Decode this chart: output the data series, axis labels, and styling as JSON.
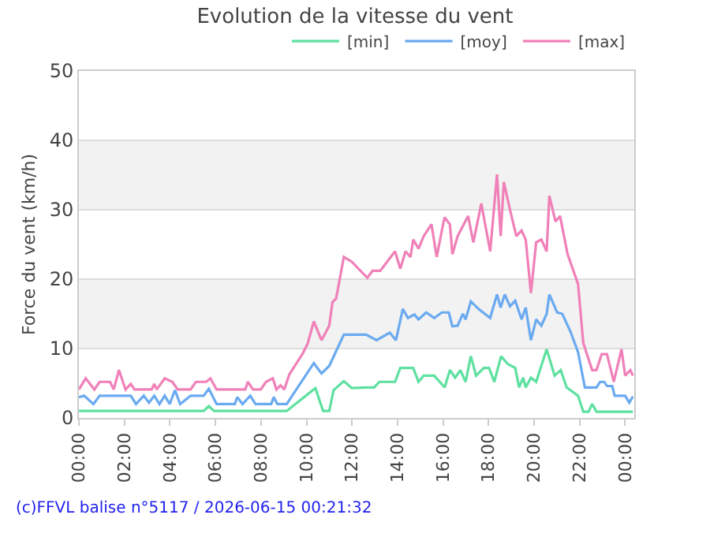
{
  "chart_data": {
    "type": "line",
    "title": "Evolution de la vitesse du vent",
    "ylabel": "Force du vent (km/h)",
    "annotations": [
      "(c)FFVL balise n°5117 / 2026-06-15 00:21:32"
    ],
    "xlim": [
      0,
      24.4
    ],
    "ylim": [
      0,
      50
    ],
    "xticks": [
      {
        "value": 0,
        "label": "00:00"
      },
      {
        "value": 2,
        "label": "02:00"
      },
      {
        "value": 4,
        "label": "04:00"
      },
      {
        "value": 6,
        "label": "06:00"
      },
      {
        "value": 8,
        "label": "08:00"
      },
      {
        "value": 10,
        "label": "10:00"
      },
      {
        "value": 12,
        "label": "12:00"
      },
      {
        "value": 14,
        "label": "14:00"
      },
      {
        "value": 16,
        "label": "16:00"
      },
      {
        "value": 18,
        "label": "18:00"
      },
      {
        "value": 20,
        "label": "20:00"
      },
      {
        "value": 22,
        "label": "22:00"
      },
      {
        "value": 24,
        "label": "00:00"
      }
    ],
    "yticks": [
      0,
      10,
      20,
      30,
      40,
      50
    ],
    "grid": "y",
    "legend": "top right",
    "marker": "none",
    "line_style": "solid",
    "bands": [
      {
        "axis": "y",
        "from": 10,
        "to": 20,
        "color": "#f2f2f2"
      },
      {
        "axis": "y",
        "from": 30,
        "to": 40,
        "color": "#f2f2f2"
      }
    ],
    "series": [
      {
        "name": "[min]",
        "color": "#5ee0a0",
        "x": [
          0,
          5.48,
          5.71,
          5.94,
          9.13,
          10.39,
          10.73,
          11.0,
          11.19,
          11.64,
          11.99,
          12.62,
          12.97,
          13.2,
          13.89,
          14.12,
          14.69,
          14.92,
          15.15,
          15.61,
          16.07,
          16.3,
          16.53,
          16.76,
          16.99,
          17.22,
          17.45,
          17.79,
          18.02,
          18.25,
          18.55,
          18.83,
          19.17,
          19.34,
          19.52,
          19.63,
          19.86,
          20.09,
          20.55,
          20.9,
          21.17,
          21.43,
          21.93,
          22.16,
          22.39,
          22.55,
          22.74,
          24.34
        ],
        "values": [
          1.0,
          1.0,
          1.7,
          1.0,
          1.0,
          4.3,
          1.0,
          1.0,
          4.0,
          5.3,
          4.3,
          4.4,
          4.4,
          5.2,
          5.2,
          7.2,
          7.2,
          5.2,
          6.1,
          6.1,
          4.4,
          6.9,
          5.8,
          6.9,
          5.2,
          8.9,
          6.1,
          7.2,
          7.2,
          5.2,
          8.9,
          7.8,
          7.2,
          4.4,
          5.8,
          4.4,
          5.8,
          5.2,
          9.9,
          6.1,
          6.9,
          4.4,
          3.2,
          0.9,
          0.9,
          2.0,
          0.9,
          0.9
        ]
      },
      {
        "name": "[moy]",
        "color": "#6aaaf0",
        "x": [
          0,
          0.23,
          0.64,
          0.91,
          2.28,
          2.51,
          2.85,
          3.08,
          3.31,
          3.54,
          3.77,
          3.99,
          4.22,
          4.45,
          4.91,
          5.48,
          5.71,
          6.05,
          6.85,
          6.96,
          7.19,
          7.53,
          7.76,
          8.45,
          8.56,
          8.72,
          9.13,
          10.32,
          10.66,
          11.0,
          11.64,
          12.21,
          12.62,
          13.08,
          13.66,
          13.93,
          14.23,
          14.46,
          14.74,
          14.92,
          15.26,
          15.61,
          15.95,
          16.25,
          16.41,
          16.64,
          16.87,
          16.99,
          17.22,
          17.56,
          18.07,
          18.37,
          18.53,
          18.71,
          18.94,
          19.17,
          19.45,
          19.63,
          19.86,
          20.09,
          20.32,
          20.55,
          20.67,
          21.01,
          21.24,
          21.59,
          21.93,
          22.23,
          22.74,
          22.9,
          23.08,
          23.2,
          23.43,
          23.54,
          24.0,
          24.18,
          24.34
        ],
        "values": [
          3.0,
          3.2,
          2.0,
          3.2,
          3.2,
          2.0,
          3.2,
          2.2,
          3.2,
          2.0,
          3.2,
          2.0,
          4.0,
          2.0,
          3.2,
          3.2,
          4.2,
          2.0,
          2.0,
          3.0,
          2.0,
          3.2,
          2.0,
          2.0,
          3.0,
          2.0,
          2.0,
          7.9,
          6.4,
          7.5,
          12.0,
          12.0,
          12.0,
          11.2,
          12.3,
          11.2,
          15.7,
          14.4,
          14.9,
          14.2,
          15.2,
          14.4,
          15.2,
          15.2,
          13.2,
          13.3,
          15.0,
          14.2,
          16.8,
          15.7,
          14.4,
          17.8,
          15.9,
          17.8,
          16.1,
          16.9,
          14.2,
          15.9,
          11.2,
          14.2,
          13.3,
          15.0,
          17.8,
          15.2,
          15.0,
          12.5,
          9.5,
          4.4,
          4.4,
          5.2,
          5.2,
          4.6,
          4.6,
          3.2,
          3.2,
          2.2,
          3.1
        ]
      },
      {
        "name": "[max]",
        "color": "#f080b8",
        "x": [
          0,
          0.3,
          0.68,
          0.91,
          1.37,
          1.53,
          1.76,
          2.05,
          2.28,
          2.44,
          3.2,
          3.31,
          3.42,
          3.77,
          4.11,
          4.34,
          4.91,
          5.14,
          5.59,
          5.78,
          6.05,
          7.31,
          7.42,
          7.65,
          7.99,
          8.22,
          8.52,
          8.68,
          8.86,
          9.02,
          9.25,
          9.82,
          10.05,
          10.32,
          10.66,
          11.0,
          11.14,
          11.3,
          11.42,
          11.64,
          11.99,
          12.67,
          12.9,
          13.24,
          13.89,
          14.12,
          14.35,
          14.57,
          14.69,
          14.92,
          15.15,
          15.49,
          15.72,
          16.0,
          16.07,
          16.3,
          16.41,
          16.64,
          17.1,
          17.33,
          17.68,
          18.07,
          18.37,
          18.53,
          18.67,
          18.94,
          19.22,
          19.45,
          19.63,
          19.86,
          20.09,
          20.32,
          20.55,
          20.67,
          20.94,
          21.14,
          21.47,
          21.93,
          22.16,
          22.55,
          22.74,
          22.97,
          23.2,
          23.5,
          23.84,
          24.0,
          24.23,
          24.34
        ],
        "values": [
          4.1,
          5.7,
          4.1,
          5.2,
          5.2,
          4.1,
          6.9,
          4.1,
          4.9,
          4.1,
          4.1,
          4.9,
          4.1,
          5.7,
          5.2,
          4.1,
          4.1,
          5.2,
          5.2,
          5.7,
          4.1,
          4.1,
          5.2,
          4.1,
          4.1,
          5.2,
          5.7,
          4.1,
          4.7,
          4.1,
          6.3,
          9.2,
          10.7,
          13.9,
          11.2,
          13.3,
          16.7,
          17.2,
          19.3,
          23.2,
          22.5,
          20.2,
          21.2,
          21.2,
          24.0,
          21.5,
          24.0,
          23.2,
          25.7,
          24.4,
          26.2,
          27.9,
          23.2,
          27.9,
          28.9,
          27.9,
          23.6,
          26.2,
          29.1,
          25.3,
          30.9,
          24.0,
          35.1,
          26.2,
          34.0,
          30.0,
          26.2,
          27.0,
          25.7,
          18.0,
          25.3,
          25.7,
          24.0,
          32.0,
          28.3,
          29.1,
          23.6,
          19.3,
          10.8,
          6.9,
          6.9,
          9.2,
          9.2,
          5.2,
          9.9,
          6.1,
          6.9,
          6.1
        ]
      }
    ]
  }
}
